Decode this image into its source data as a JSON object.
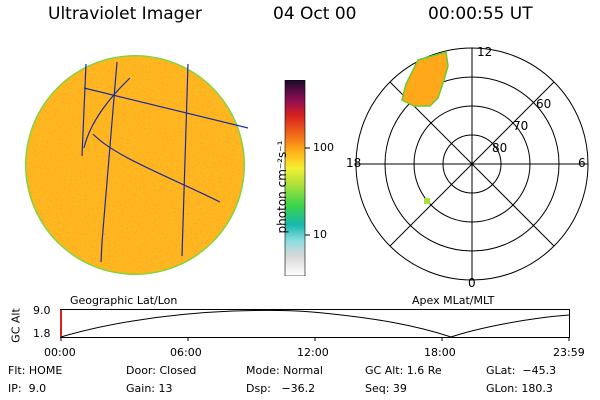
{
  "header": {
    "instrument": "Ultraviolet Imager",
    "date": "04 Oct 00",
    "time": "00:00:55 UT"
  },
  "colorbar": {
    "unit_label": "photon cm⁻²s⁻¹",
    "tick_100": "100",
    "tick_10": "10"
  },
  "polar": {
    "mlt_12": "12",
    "mlt_18": "18",
    "mlt_6": "6",
    "mlt_0": "0",
    "lat_60": "60",
    "lat_70": "70",
    "lat_80": "80"
  },
  "orbit": {
    "left_title": "Geographic Lat/Lon",
    "right_title": "Apex MLat/MLT",
    "ylabel": "GC Alt",
    "ytick_top": "9.0",
    "ytick_bottom": "1.8",
    "xticks": [
      "00:00",
      "06:00",
      "12:00",
      "18:00",
      "23:59"
    ]
  },
  "status": {
    "flt": "Flt: HOME",
    "ip": "IP:  9.0",
    "door": "Door: Closed",
    "gain": "Gain: 13",
    "mode": "Mode: Normal",
    "dsp": "Dsp:   −36.2",
    "gcalt": "GC Alt: 1.6 Re",
    "seq": "Seq: 39",
    "glat": "GLat:  −45.3",
    "glon": "GLon: 180.3"
  },
  "colors": {
    "disk": "#ffb21a",
    "disk_speckle": "#e3211a",
    "disk_rim": "#7fd33a",
    "grid_line": "#1e2a9c"
  }
}
